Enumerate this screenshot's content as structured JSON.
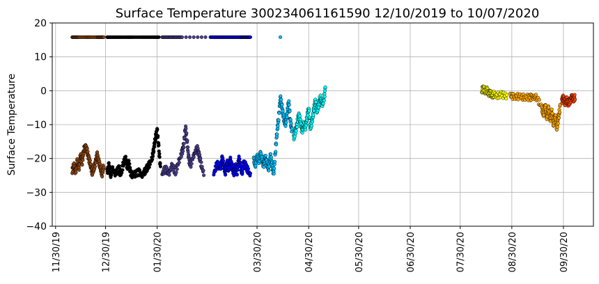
{
  "chart_data": {
    "type": "scatter",
    "title": "Surface Temperature 300234061161590  12/10/2019 to 10/07/2020",
    "xlabel": "",
    "ylabel": "Surface Temperature",
    "ylim": [
      -40,
      20
    ],
    "xlim": [
      "2019-11-28",
      "2020-10-18"
    ],
    "yticks": [
      20,
      10,
      0,
      -10,
      -20,
      -30,
      -40
    ],
    "ytick_labels": [
      "20",
      "10",
      "0",
      "−10",
      "−20",
      "−30",
      "−40"
    ],
    "xticks": [
      "2019-11-30",
      "2019-12-30",
      "2020-01-30",
      "2020-03-30",
      "2020-04-30",
      "2020-05-30",
      "2020-06-30",
      "2020-07-30",
      "2020-08-30",
      "2020-09-30"
    ],
    "xtick_labels": [
      "11/30/19",
      "12/30/19",
      "01/30/20",
      "03/30/20",
      "04/30/20",
      "05/30/20",
      "06/30/20",
      "07/30/20",
      "08/30/20",
      "09/30/20"
    ],
    "grid": true,
    "color_encoding": "time",
    "colors": [
      "#8B4513",
      "#000000",
      "#483D8B",
      "#0000FF",
      "#00BFFF",
      "#00FFFF",
      "#FFFF00",
      "#FFA500",
      "#FF4500"
    ],
    "segments": [
      {
        "color": "#8B4513",
        "points": [
          [
            "2019-12-10",
            -23.5
          ],
          [
            "2019-12-11",
            -22
          ],
          [
            "2019-12-12",
            -24
          ],
          [
            "2019-12-13",
            -21
          ],
          [
            "2019-12-14",
            -23
          ],
          [
            "2019-12-15",
            -19
          ],
          [
            "2019-12-16",
            -21
          ],
          [
            "2019-12-17",
            -17.5
          ],
          [
            "2019-12-18",
            -16.5
          ],
          [
            "2019-12-19",
            -18
          ],
          [
            "2019-12-20",
            -20
          ],
          [
            "2019-12-21",
            -22
          ],
          [
            "2019-12-22",
            -24
          ],
          [
            "2019-12-23",
            -23
          ],
          [
            "2019-12-24",
            -21
          ],
          [
            "2019-12-25",
            -19
          ],
          [
            "2019-12-26",
            -21
          ],
          [
            "2019-12-27",
            -23
          ],
          [
            "2019-12-28",
            -24.5
          ],
          [
            "2019-12-29",
            -22
          ],
          [
            "2019-12-10",
            15.8
          ],
          [
            "2019-12-12",
            15.8
          ],
          [
            "2019-12-14",
            15.8
          ],
          [
            "2019-12-18",
            15.8
          ],
          [
            "2019-12-21",
            15.8
          ],
          [
            "2019-12-25",
            15.8
          ],
          [
            "2019-12-27",
            15.8
          ],
          [
            "2019-12-29",
            15.8
          ]
        ]
      },
      {
        "color": "#000000",
        "points": [
          [
            "2019-12-31",
            -24
          ],
          [
            "2020-01-01",
            -22
          ],
          [
            "2020-01-02",
            -25
          ],
          [
            "2020-01-03",
            -23
          ],
          [
            "2020-01-05",
            -24.5
          ],
          [
            "2020-01-07",
            -23
          ],
          [
            "2020-01-08",
            -25
          ],
          [
            "2020-01-10",
            -21
          ],
          [
            "2020-01-11",
            -20
          ],
          [
            "2020-01-12",
            -22.5
          ],
          [
            "2020-01-13",
            -21.5
          ],
          [
            "2020-01-14",
            -24
          ],
          [
            "2020-01-15",
            -25
          ],
          [
            "2020-01-17",
            -24.5
          ],
          [
            "2020-01-19",
            -24
          ],
          [
            "2020-01-21",
            -25
          ],
          [
            "2020-01-23",
            -23.5
          ],
          [
            "2020-01-25",
            -22
          ],
          [
            "2020-01-27",
            -20
          ],
          [
            "2020-01-28",
            -17
          ],
          [
            "2020-01-29",
            -14
          ],
          [
            "2020-01-30",
            -11.5
          ],
          [
            "2020-01-31",
            -17
          ],
          [
            "2020-02-01",
            -23
          ],
          [
            "2019-12-31",
            15.8
          ],
          [
            "2020-01-02",
            15.8
          ],
          [
            "2020-01-05",
            15.8
          ],
          [
            "2020-01-08",
            15.8
          ],
          [
            "2020-01-12",
            15.8
          ],
          [
            "2020-01-15",
            15.8
          ],
          [
            "2020-01-20",
            15.8
          ],
          [
            "2020-01-24",
            15.8
          ],
          [
            "2020-01-28",
            15.8
          ],
          [
            "2020-01-31",
            15.8
          ]
        ]
      },
      {
        "color": "#483D8B",
        "points": [
          [
            "2020-02-02",
            -24.5
          ],
          [
            "2020-02-04",
            -23
          ],
          [
            "2020-02-06",
            -24.5
          ],
          [
            "2020-02-08",
            -22
          ],
          [
            "2020-02-10",
            -24
          ],
          [
            "2020-02-12",
            -21
          ],
          [
            "2020-02-14",
            -18
          ],
          [
            "2020-02-15",
            -16
          ],
          [
            "2020-02-16",
            -10.5
          ],
          [
            "2020-02-17",
            -15
          ],
          [
            "2020-02-18",
            -20
          ],
          [
            "2020-02-19",
            -22
          ],
          [
            "2020-02-21",
            -19
          ],
          [
            "2020-02-23",
            -17
          ],
          [
            "2020-02-24",
            -18.5
          ],
          [
            "2020-02-25",
            -21
          ],
          [
            "2020-02-27",
            -24.5
          ],
          [
            "2020-02-02",
            15.8
          ],
          [
            "2020-02-05",
            15.8
          ],
          [
            "2020-02-08",
            15.8
          ],
          [
            "2020-02-11",
            15.8
          ],
          [
            "2020-02-14",
            15.8
          ],
          [
            "2020-02-28",
            15.8
          ]
        ]
      },
      {
        "color": "#0000FF",
        "points": [
          [
            "2020-03-04",
            -24.5
          ],
          [
            "2020-03-06",
            -21.5
          ],
          [
            "2020-03-08",
            -23
          ],
          [
            "2020-03-09",
            -20
          ],
          [
            "2020-03-10",
            -22
          ],
          [
            "2020-03-11",
            -24
          ],
          [
            "2020-03-12",
            -21
          ],
          [
            "2020-03-13",
            -23.5
          ],
          [
            "2020-03-14",
            -20.5
          ],
          [
            "2020-03-15",
            -22.5
          ],
          [
            "2020-03-16",
            -24.5
          ],
          [
            "2020-03-17",
            -22
          ],
          [
            "2020-03-18",
            -24
          ],
          [
            "2020-03-19",
            -20
          ],
          [
            "2020-03-20",
            -22
          ],
          [
            "2020-03-21",
            -24.5
          ],
          [
            "2020-03-22",
            -21
          ],
          [
            "2020-03-24",
            -23
          ],
          [
            "2020-03-26",
            -25
          ],
          [
            "2020-03-02",
            15.8
          ],
          [
            "2020-03-05",
            15.8
          ],
          [
            "2020-03-08",
            15.8
          ],
          [
            "2020-03-11",
            15.8
          ],
          [
            "2020-03-14",
            15.8
          ],
          [
            "2020-03-17",
            15.8
          ],
          [
            "2020-03-20",
            15.8
          ],
          [
            "2020-03-22",
            15.8
          ],
          [
            "2020-03-24",
            15.8
          ],
          [
            "2020-03-26",
            15.8
          ]
        ]
      },
      {
        "color": "#00BFFF",
        "points": [
          [
            "2020-03-28",
            -20
          ],
          [
            "2020-03-29",
            -22
          ],
          [
            "2020-03-30",
            -19
          ],
          [
            "2020-03-31",
            -21
          ],
          [
            "2020-04-01",
            -18.5
          ],
          [
            "2020-04-02",
            -20.5
          ],
          [
            "2020-04-03",
            -22
          ],
          [
            "2020-04-04",
            -19.5
          ],
          [
            "2020-04-05",
            -21.5
          ],
          [
            "2020-04-06",
            -23
          ],
          [
            "2020-04-07",
            -19
          ],
          [
            "2020-04-08",
            -22
          ],
          [
            "2020-04-09",
            -24.5
          ],
          [
            "2020-04-10",
            -18
          ],
          [
            "2020-04-11",
            -12
          ],
          [
            "2020-04-12",
            -8
          ],
          [
            "2020-04-13",
            -2
          ],
          [
            "2020-04-14",
            -5
          ],
          [
            "2020-04-15",
            -8
          ],
          [
            "2020-04-16",
            -10
          ],
          [
            "2020-04-17",
            -7
          ],
          [
            "2020-04-18",
            -3
          ],
          [
            "2020-04-19",
            -9
          ],
          [
            "2020-04-20",
            -12
          ],
          [
            "2020-04-13",
            15.8
          ]
        ]
      },
      {
        "color": "#00FFFF",
        "points": [
          [
            "2020-04-21",
            -14
          ],
          [
            "2020-04-22",
            -12
          ],
          [
            "2020-04-23",
            -10
          ],
          [
            "2020-04-24",
            -7
          ],
          [
            "2020-04-25",
            -9
          ],
          [
            "2020-04-26",
            -12
          ],
          [
            "2020-04-27",
            -10
          ],
          [
            "2020-04-28",
            -11
          ],
          [
            "2020-04-29",
            -8
          ],
          [
            "2020-04-30",
            -5
          ],
          [
            "2020-05-01",
            -11
          ],
          [
            "2020-05-02",
            -9
          ],
          [
            "2020-05-03",
            -6
          ],
          [
            "2020-05-04",
            -3
          ],
          [
            "2020-05-05",
            -6
          ],
          [
            "2020-05-06",
            -4
          ],
          [
            "2020-05-07",
            -2
          ],
          [
            "2020-05-08",
            -4
          ],
          [
            "2020-05-09",
            -3
          ],
          [
            "2020-05-10",
            0.5
          ]
        ]
      },
      {
        "color": "#FFFF00",
        "points": [
          [
            "2020-08-12",
            0
          ],
          [
            "2020-08-13",
            1
          ],
          [
            "2020-08-14",
            -0.5
          ],
          [
            "2020-08-15",
            0.5
          ],
          [
            "2020-08-16",
            -1
          ],
          [
            "2020-08-17",
            -0.5
          ],
          [
            "2020-08-18",
            -1.5
          ],
          [
            "2020-08-19",
            -1
          ],
          [
            "2020-08-21",
            -1.5
          ],
          [
            "2020-08-24",
            -1.2
          ],
          [
            "2020-08-27",
            -1.5
          ]
        ]
      },
      {
        "color": "#FFA500",
        "points": [
          [
            "2020-08-29",
            -1.5
          ],
          [
            "2020-09-01",
            -1.7
          ],
          [
            "2020-09-04",
            -1.8
          ],
          [
            "2020-09-07",
            -1.9
          ],
          [
            "2020-09-10",
            -2
          ],
          [
            "2020-09-12",
            -1.8
          ],
          [
            "2020-09-14",
            -2
          ],
          [
            "2020-09-17",
            -5
          ],
          [
            "2020-09-18",
            -7
          ],
          [
            "2020-09-19",
            -4
          ],
          [
            "2020-09-20",
            -8
          ],
          [
            "2020-09-21",
            -5
          ],
          [
            "2020-09-22",
            -9
          ],
          [
            "2020-09-23",
            -6
          ],
          [
            "2020-09-24",
            -10
          ],
          [
            "2020-09-25",
            -7
          ],
          [
            "2020-09-26",
            -11
          ],
          [
            "2020-09-27",
            -8
          ],
          [
            "2020-09-28",
            -5
          ]
        ]
      },
      {
        "color": "#FF4500",
        "points": [
          [
            "2020-09-29",
            -3
          ],
          [
            "2020-09-30",
            -2
          ],
          [
            "2020-10-01",
            -3.5
          ],
          [
            "2020-10-02",
            -2.5
          ],
          [
            "2020-10-03",
            -4
          ],
          [
            "2020-10-04",
            -3
          ],
          [
            "2020-10-05",
            -2
          ],
          [
            "2020-10-06",
            -2.5
          ],
          [
            "2020-10-07",
            -1.8
          ]
        ]
      }
    ]
  }
}
